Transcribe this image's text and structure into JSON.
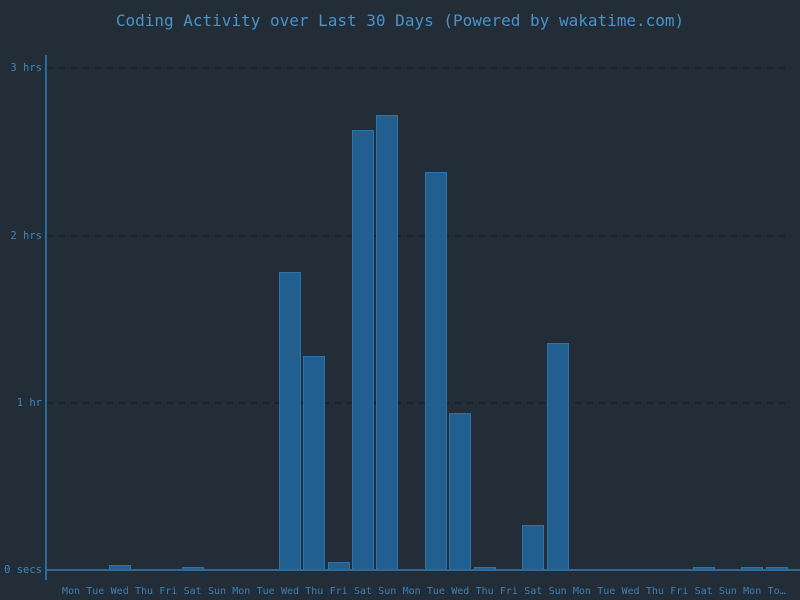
{
  "title": "Coding Activity over Last 30 Days (Powered by wakatime.com)",
  "colors": {
    "background": "#232d38",
    "bar_fill": "#215f90",
    "bar_border": "#2d74ab",
    "axis_line": "#2b6a9c",
    "gridline": "#182029",
    "title_text": "#4a92c8",
    "y_tick_text": "#3f86bd",
    "x_tick_text": "#3d7fb5"
  },
  "chart_data": {
    "type": "bar",
    "title": "Coding Activity over Last 30 Days (Powered by wakatime.com)",
    "xlabel": "",
    "ylabel": "",
    "units": "hours of coding per day",
    "grid": "horizontal dashed gridlines at each hour",
    "legend": "none",
    "ylim": [
      0,
      3.1
    ],
    "y_ticks": [
      {
        "label": "3 hrs",
        "hours": 3
      },
      {
        "label": "2 hrs",
        "hours": 2
      },
      {
        "label": "1 hr",
        "hours": 1
      },
      {
        "label": "0 secs",
        "hours": 0
      }
    ],
    "categories": [
      "Mon",
      "Tue",
      "Wed",
      "Thu",
      "Fri",
      "Sat",
      "Sun",
      "Mon",
      "Tue",
      "Wed",
      "Thu",
      "Fri",
      "Sat",
      "Sun",
      "Mon",
      "Tue",
      "Wed",
      "Thu",
      "Fri",
      "Sat",
      "Sun",
      "Mon",
      "Tue",
      "Wed",
      "Thu",
      "Fri",
      "Sat",
      "Sun",
      "Mon",
      "To…"
    ],
    "values": [
      0,
      0,
      0.03,
      0,
      0,
      0.015,
      0,
      0,
      0,
      1.78,
      1.28,
      0.05,
      2.63,
      2.72,
      0,
      2.38,
      0.94,
      0.01,
      0,
      0.27,
      1.36,
      0,
      0,
      0,
      0,
      0,
      0.01,
      0,
      0.01,
      0.01
    ]
  }
}
